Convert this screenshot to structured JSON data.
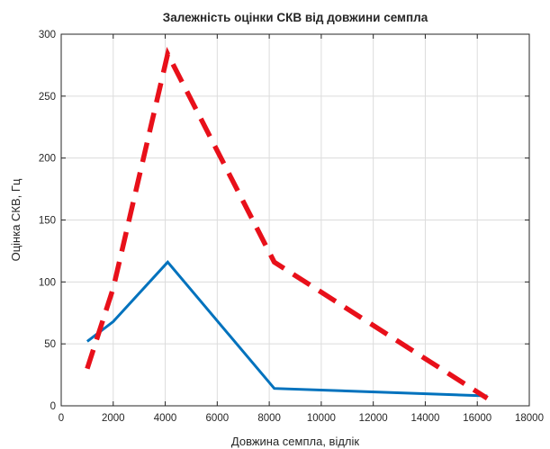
{
  "chart_data": {
    "type": "line",
    "title": "Залежність оцінки СКВ від довжини семпла",
    "xlabel": "Довжина семпла, відлік",
    "ylabel": "Оцінка СКВ, Гц",
    "xlim": [
      0,
      18000
    ],
    "ylim": [
      0,
      300
    ],
    "xticks": [
      0,
      2000,
      4000,
      6000,
      8000,
      10000,
      12000,
      14000,
      16000,
      18000
    ],
    "yticks": [
      0,
      50,
      100,
      150,
      200,
      250,
      300
    ],
    "grid": true,
    "legend": "none",
    "series": [
      {
        "color": "#0072BD",
        "style": "solid",
        "x": [
          1000,
          2000,
          4096,
          8192,
          16384
        ],
        "y": [
          52,
          68,
          116,
          14,
          8
        ]
      },
      {
        "color": "#E8101A",
        "style": "dashed",
        "x": [
          1000,
          2000,
          4096,
          8192,
          16384
        ],
        "y": [
          30,
          95,
          284,
          116,
          6
        ]
      }
    ]
  }
}
